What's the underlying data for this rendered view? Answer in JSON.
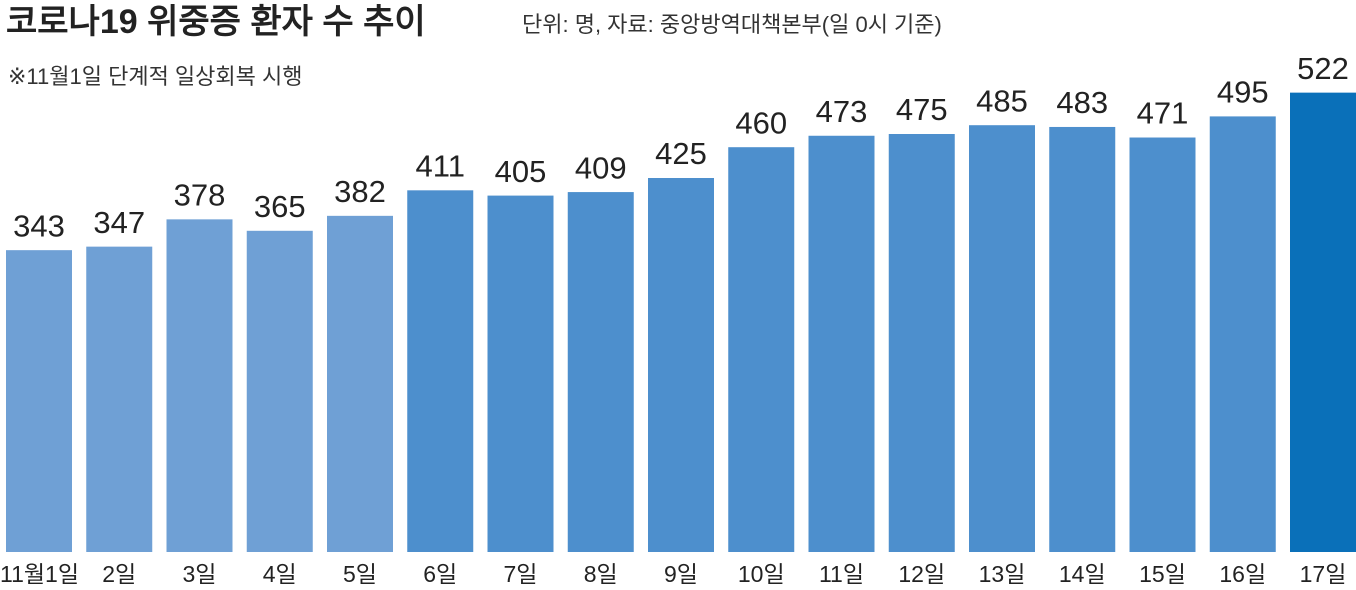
{
  "chart_data": {
    "type": "bar",
    "title": "코로나19 위중증 환자 수 추이",
    "subtitle": "단위: 명, 자료: 중앙방역대책본부(일 0시 기준)",
    "annotation": "※11월1일 단계적 일상회복 시행",
    "categories": [
      "11월1일",
      "2일",
      "3일",
      "4일",
      "5일",
      "6일",
      "7일",
      "8일",
      "9일",
      "10일",
      "11일",
      "12일",
      "13일",
      "14일",
      "15일",
      "16일",
      "17일"
    ],
    "values": [
      343,
      347,
      378,
      365,
      382,
      411,
      405,
      409,
      425,
      460,
      473,
      475,
      485,
      483,
      471,
      495,
      522
    ],
    "colors": [
      "#6fa0d5",
      "#6fa0d5",
      "#6fa0d5",
      "#6fa0d5",
      "#6fa0d5",
      "#4d8fcd",
      "#4d8fcd",
      "#4d8fcd",
      "#4d8fcd",
      "#4d8fcd",
      "#4d8fcd",
      "#4d8fcd",
      "#4d8fcd",
      "#4d8fcd",
      "#4d8fcd",
      "#4d8fcd",
      "#0a70b9"
    ]
  }
}
